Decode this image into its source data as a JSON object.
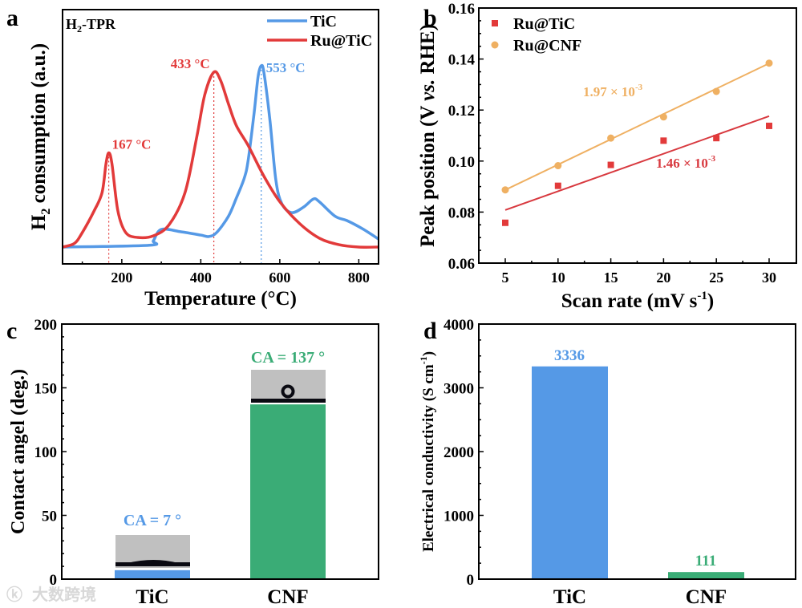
{
  "colors": {
    "blue": "#5599e6",
    "red": "#e23a3a",
    "orange": "#efb062",
    "green": "#3aac76",
    "crimson": "#d8393f",
    "grey": "#c0c0c0"
  },
  "watermark": "大数跨境",
  "chart_data": [
    {
      "panel": "a",
      "type": "line",
      "title": "H2-TPR",
      "title_main": "H",
      "title_sub": "2",
      "title_rest": "-TPR",
      "xlabel": "Temperature (°C)",
      "ylabel_main": "H",
      "ylabel_sub": "2",
      "ylabel_rest": " consumption (a.u.)",
      "xlim": [
        50,
        850
      ],
      "ylim": [
        -0.093,
        1.31
      ],
      "xticks": [
        200,
        400,
        600,
        800
      ],
      "legend_position": "top-right",
      "series": [
        {
          "name": "TiC",
          "color": "#5599e6",
          "x": [
            50,
            270,
            280,
            300,
            350,
            400,
            420,
            440,
            470,
            490,
            510,
            520,
            535,
            545,
            553,
            560,
            575,
            590,
            605,
            630,
            660,
            685,
            700,
            740,
            770,
            810,
            850
          ],
          "y": [
            0,
            0.01,
            0.035,
            0.097,
            0.084,
            0.066,
            0.058,
            0.08,
            0.17,
            0.27,
            0.38,
            0.48,
            0.74,
            0.94,
            1.0,
            0.96,
            0.7,
            0.37,
            0.24,
            0.19,
            0.22,
            0.265,
            0.25,
            0.17,
            0.146,
            0.1,
            0.044
          ]
        },
        {
          "name": "Ru@TiC",
          "color": "#e23a3a",
          "x": [
            50,
            80,
            100,
            130,
            150,
            160,
            167,
            175,
            190,
            210,
            240,
            280,
            320,
            360,
            390,
            410,
            433,
            450,
            470,
            490,
            520,
            560,
            600,
            650,
            700,
            750,
            800,
            850
          ],
          "y": [
            0,
            0.02,
            0.08,
            0.2,
            0.3,
            0.46,
            0.52,
            0.46,
            0.2,
            0.08,
            0.053,
            0.062,
            0.124,
            0.3,
            0.61,
            0.84,
            0.965,
            0.92,
            0.79,
            0.67,
            0.56,
            0.39,
            0.25,
            0.13,
            0.049,
            0.013,
            0,
            0
          ]
        }
      ],
      "annotations": [
        {
          "text": "167 °C",
          "x": 167,
          "y": 0.52,
          "color": "#e23a3a"
        },
        {
          "text": "433 °C",
          "x": 433,
          "y": 0.965,
          "color": "#e23a3a"
        },
        {
          "text": "553 °C",
          "x": 553,
          "y": 1.0,
          "color": "#5599e6"
        }
      ]
    },
    {
      "panel": "b",
      "type": "scatter",
      "xlabel": "Scan rate (mV s",
      "xlabel_sup": "-1",
      "xlabel_end": ")",
      "ylabel_a": "Peak position (V ",
      "ylabel_b": "vs.",
      "ylabel_c": " RHE)",
      "xlim": [
        3.3,
        31.7
      ],
      "ylim": [
        0.06,
        0.16
      ],
      "xticks": [
        5,
        10,
        15,
        20,
        25,
        30
      ],
      "yticks": [
        "0.06",
        "0.08",
        "0.10",
        "0.12",
        "0.14",
        "0.16"
      ],
      "legend_position": "top-left",
      "series": [
        {
          "name": "Ru@TiC",
          "marker": "square",
          "color": "#e23a3a",
          "x": [
            5,
            10,
            15,
            20,
            25,
            30
          ],
          "y": [
            0.0758,
            0.0903,
            0.0985,
            0.108,
            0.109,
            0.1138
          ],
          "fit": [
            0.0808,
            0.1176
          ],
          "slope_label": "1.46 × 10",
          "slope_exp": "-3",
          "line_color": "#d8393f"
        },
        {
          "name": "Ru@CNF",
          "marker": "circle",
          "color": "#efb062",
          "x": [
            5,
            10,
            15,
            20,
            25,
            30
          ],
          "y": [
            0.0887,
            0.0982,
            0.109,
            0.1173,
            0.1273,
            0.1384
          ],
          "fit": [
            0.0887,
            0.1383
          ],
          "slope_label": "1.97 × 10",
          "slope_exp": "-3",
          "line_color": "#efb062"
        }
      ]
    },
    {
      "panel": "c",
      "type": "bar",
      "categories": [
        "TiC",
        "CNF"
      ],
      "values": [
        7,
        137
      ],
      "colors": [
        "#5599e6",
        "#3aac76"
      ],
      "data_labels": [
        "CA = 7 °",
        "CA = 137 °"
      ],
      "ylabel": "Contact angel (deg.)",
      "ylim": [
        0,
        200
      ],
      "yticks": [
        0,
        50,
        100,
        150,
        200
      ]
    },
    {
      "panel": "d",
      "type": "bar",
      "categories": [
        "TiC",
        "CNF"
      ],
      "values": [
        3336,
        111
      ],
      "colors": [
        "#5599e6",
        "#3aac76"
      ],
      "data_labels": [
        "3336",
        "111"
      ],
      "ylabel": "Electrical conductivity (S cm",
      "ylabel_sup": "-1",
      "ylabel_end": ")",
      "ylim": [
        0,
        4000
      ],
      "yticks": [
        0,
        1000,
        2000,
        3000,
        4000
      ]
    }
  ]
}
